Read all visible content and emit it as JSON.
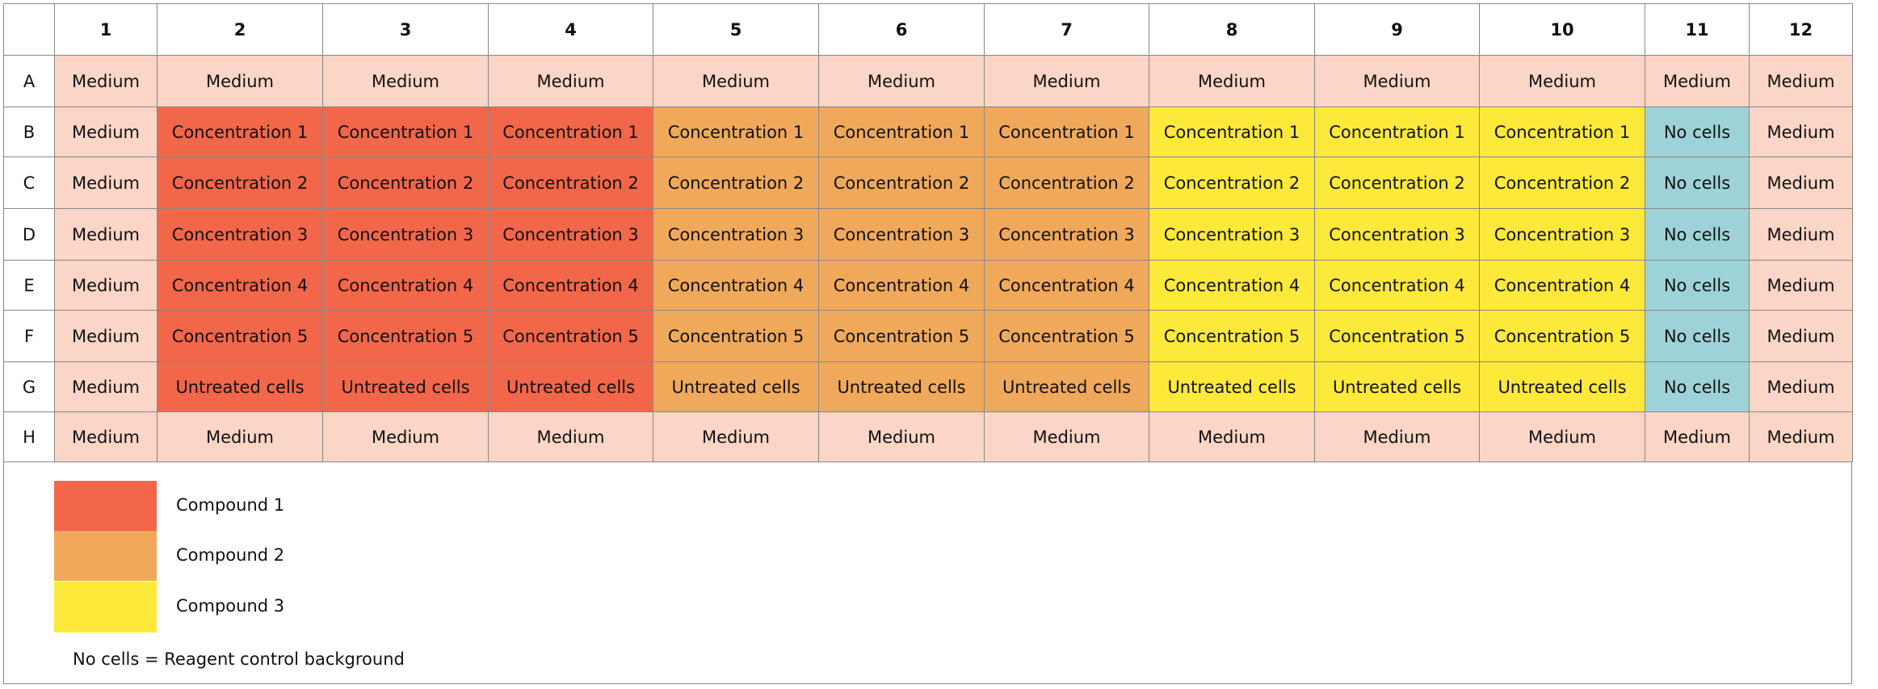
{
  "table": {
    "columns": [
      "1",
      "2",
      "3",
      "4",
      "5",
      "6",
      "7",
      "8",
      "9",
      "10",
      "11",
      "12"
    ],
    "rows": [
      {
        "label": "A",
        "cells": [
          "Medium",
          "Medium",
          "Medium",
          "Medium",
          "Medium",
          "Medium",
          "Medium",
          "Medium",
          "Medium",
          "Medium",
          "Medium",
          "Medium"
        ]
      },
      {
        "label": "B",
        "cells": [
          "Medium",
          "Concentration 1",
          "Concentration 1",
          "Concentration 1",
          "Concentration 1",
          "Concentration 1",
          "Concentration 1",
          "Concentration 1",
          "Concentration 1",
          "Concentration 1",
          "No cells",
          "Medium"
        ]
      },
      {
        "label": "C",
        "cells": [
          "Medium",
          "Concentration 2",
          "Concentration 2",
          "Concentration 2",
          "Concentration 2",
          "Concentration 2",
          "Concentration 2",
          "Concentration 2",
          "Concentration 2",
          "Concentration 2",
          "No cells",
          "Medium"
        ]
      },
      {
        "label": "D",
        "cells": [
          "Medium",
          "Concentration 3",
          "Concentration 3",
          "Concentration 3",
          "Concentration 3",
          "Concentration 3",
          "Concentration 3",
          "Concentration 3",
          "Concentration 3",
          "Concentration 3",
          "No cells",
          "Medium"
        ]
      },
      {
        "label": "E",
        "cells": [
          "Medium",
          "Concentration 4",
          "Concentration 4",
          "Concentration 4",
          "Concentration 4",
          "Concentration 4",
          "Concentration 4",
          "Concentration 4",
          "Concentration 4",
          "Concentration 4",
          "No cells",
          "Medium"
        ]
      },
      {
        "label": "F",
        "cells": [
          "Medium",
          "Concentration 5",
          "Concentration 5",
          "Concentration 5",
          "Concentration 5",
          "Concentration 5",
          "Concentration 5",
          "Concentration 5",
          "Concentration 5",
          "Concentration 5",
          "No cells",
          "Medium"
        ]
      },
      {
        "label": "G",
        "cells": [
          "Medium",
          "Untreated cells",
          "Untreated cells",
          "Untreated cells",
          "Untreated cells",
          "Untreated cells",
          "Untreated cells",
          "Untreated cells",
          "Untreated cells",
          "Untreated cells",
          "No cells",
          "Medium"
        ]
      },
      {
        "label": "H",
        "cells": [
          "Medium",
          "Medium",
          "Medium",
          "Medium",
          "Medium",
          "Medium",
          "Medium",
          "Medium",
          "Medium",
          "Medium",
          "Medium",
          "Medium"
        ]
      }
    ]
  },
  "legend": [
    {
      "label": "Compound 1",
      "color": "#f2664a"
    },
    {
      "label": "Compound 2",
      "color": "#f0a95a"
    },
    {
      "label": "Compound 3",
      "color": "#fde93a"
    }
  ],
  "note": "No cells = Reagent control background"
}
